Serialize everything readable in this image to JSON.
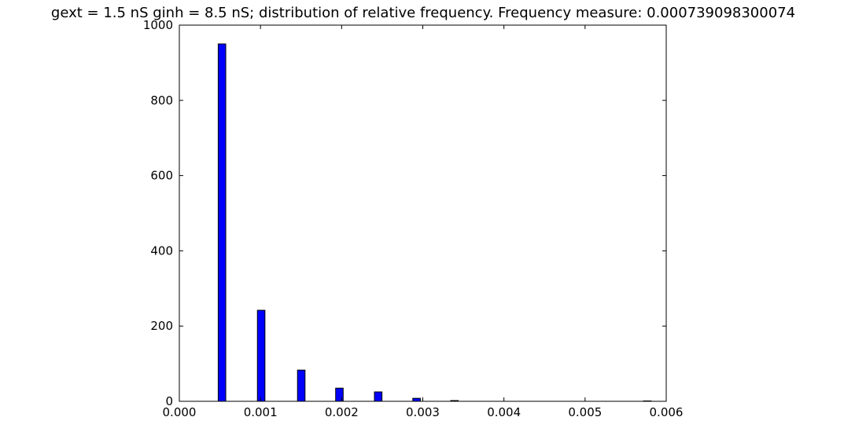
{
  "chart_data": {
    "type": "bar",
    "title": "gext = 1.5 nS ginh = 8.5 nS; distribution of relative frequency. Frequency measure: 0.000739098300074",
    "xlabel": "",
    "ylabel": "",
    "xlim": [
      0.0,
      0.006
    ],
    "ylim": [
      0,
      1000
    ],
    "x_ticks": [
      "0.000",
      "0.001",
      "0.002",
      "0.003",
      "0.004",
      "0.005",
      "0.006"
    ],
    "y_ticks": [
      "0",
      "200",
      "400",
      "600",
      "800",
      "1000"
    ],
    "grid": false,
    "bar_color": "#0000ff",
    "bar_edge_color": "#000000",
    "bars": [
      {
        "x": 0.000479,
        "width": 9.3e-05,
        "value": 950
      },
      {
        "x": 0.000962,
        "width": 9.3e-05,
        "value": 242
      },
      {
        "x": 0.001456,
        "width": 9.3e-05,
        "value": 83
      },
      {
        "x": 0.001926,
        "width": 9.3e-05,
        "value": 35
      },
      {
        "x": 0.002404,
        "width": 9.3e-05,
        "value": 25
      },
      {
        "x": 0.002877,
        "width": 9.3e-05,
        "value": 8
      },
      {
        "x": 0.003344,
        "width": 9.3e-05,
        "value": 2
      },
      {
        "x": 0.00572,
        "width": 9.3e-05,
        "value": 1
      }
    ]
  }
}
